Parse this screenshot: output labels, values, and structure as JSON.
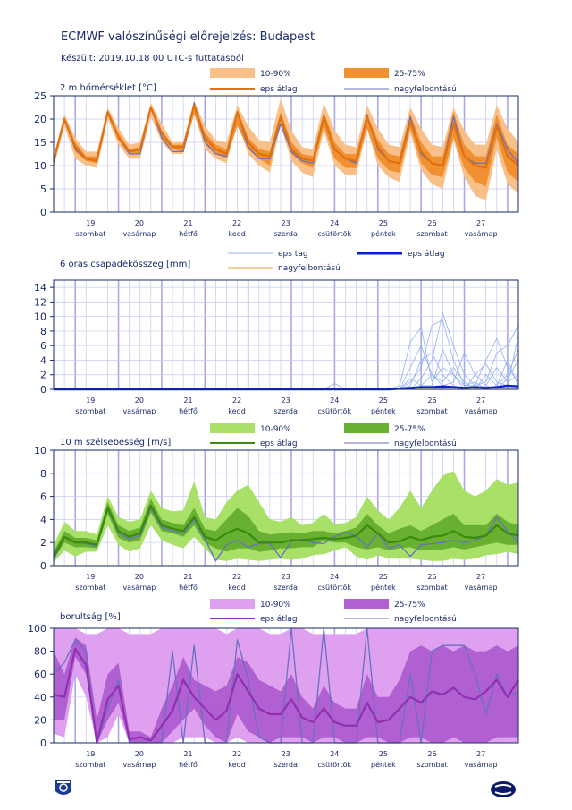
{
  "header": {
    "title": "ECMWF valószínűségi előrejelzés: Budapest",
    "subtitle": "Készült: 2019.10.18 00 UTC-s futtatásból"
  },
  "days": [
    {
      "num": "19",
      "name": "szombat"
    },
    {
      "num": "20",
      "name": "vasárnap"
    },
    {
      "num": "21",
      "name": "hétfő"
    },
    {
      "num": "22",
      "name": "kedd"
    },
    {
      "num": "23",
      "name": "szerda"
    },
    {
      "num": "24",
      "name": "csütörtök"
    },
    {
      "num": "25",
      "name": "péntek"
    },
    {
      "num": "26",
      "name": "szombat"
    },
    {
      "num": "27",
      "name": "vasárnap"
    }
  ],
  "legend": {
    "p10_90": "10-90%",
    "p25_75": "25-75%",
    "eps_mean": "eps átlag",
    "hires": "nagyfelbontású",
    "eps_member": "eps tag"
  },
  "colors": {
    "axis": "#1a2a6a",
    "grid": "#c8c8f0",
    "midnight": "#a8a8e8",
    "temp_outer": "#f8c088",
    "temp_inner": "#f09030",
    "temp_mean": "#e07010",
    "precip_member": "#90b0f0",
    "precip_mean": "#0a20d0",
    "precip_hires": "#f0a040",
    "wind_outer": "#a8e068",
    "wind_inner": "#68b030",
    "wind_mean": "#3a8a10",
    "cloud_outer": "#e0a0f0",
    "cloud_inner": "#b060d0",
    "cloud_mean": "#9030b0",
    "hires": "#6870c0"
  },
  "chart_data": [
    {
      "type": "area",
      "title": "2 m hőmérséklet [°C]",
      "ylim": [
        0,
        25
      ],
      "yticks": [
        0,
        5,
        10,
        15,
        20,
        25
      ],
      "x_step_hours": 6,
      "p10": [
        9.5,
        18.5,
        11.5,
        10,
        9.5,
        20,
        14.5,
        11.5,
        11.5,
        20.5,
        15,
        12.5,
        12.5,
        21.5,
        13.5,
        11.5,
        10.5,
        19.5,
        12.5,
        10,
        8.5,
        18.5,
        11,
        8.5,
        7.5,
        17.5,
        10,
        8,
        8,
        18,
        10,
        7.5,
        6.5,
        17,
        9,
        6,
        5,
        15.5,
        7.5,
        3.5,
        2.5,
        13.5,
        6,
        4
      ],
      "p25": [
        10.5,
        19.5,
        13,
        11,
        10.5,
        21,
        15.5,
        12.5,
        12.5,
        22.5,
        16,
        13.5,
        13,
        21,
        15,
        12.5,
        11.5,
        18.5,
        13.5,
        11.5,
        10,
        19.5,
        12.5,
        10.5,
        9.5,
        18.5,
        11.5,
        9.5,
        9.5,
        18,
        11.5,
        9,
        8.5,
        18,
        10.5,
        8,
        7.5,
        16,
        9.5,
        6.5,
        5.5,
        16,
        8.5,
        6.5
      ],
      "mean": [
        11,
        20,
        14,
        11.5,
        11,
        21.5,
        16,
        13,
        13.5,
        22.5,
        17,
        14,
        14,
        23,
        16,
        13.5,
        12.5,
        21.5,
        15,
        12.5,
        12,
        20.5,
        13.5,
        11.5,
        11,
        20.5,
        13.5,
        11.5,
        11,
        20.5,
        14,
        11,
        10.5,
        19.5,
        13,
        10.5,
        10,
        19,
        12,
        10,
        9.5,
        18.5,
        12,
        10
      ],
      "p75": [
        11.5,
        20.5,
        15,
        12,
        12,
        22,
        17,
        13.5,
        14,
        23,
        17.5,
        14.5,
        14.5,
        23.5,
        17,
        14.5,
        13.5,
        22,
        16,
        13.5,
        13,
        21.5,
        15,
        12.5,
        12,
        21.5,
        15,
        12.5,
        12.5,
        21,
        15.5,
        12.5,
        12,
        21,
        15,
        12,
        12,
        21.5,
        14.5,
        12,
        12,
        21,
        14.5,
        12.5
      ],
      "p90": [
        12,
        21,
        16,
        13,
        13,
        22.5,
        18,
        14.5,
        15,
        23.5,
        19,
        15,
        15,
        24,
        18.5,
        15.5,
        15,
        23,
        18.5,
        15.5,
        15,
        24.5,
        17.5,
        14,
        13.5,
        23.5,
        17.5,
        14.5,
        14,
        23,
        18,
        14.5,
        14,
        22.5,
        18,
        14.5,
        14,
        22.5,
        17.5,
        14.5,
        14.5,
        23,
        18,
        15
      ],
      "hires": [
        10.5,
        20,
        13.5,
        11.5,
        11,
        21.5,
        16,
        12.5,
        12.5,
        22.5,
        16,
        13,
        13,
        23.5,
        15,
        12.5,
        12,
        21.5,
        14,
        11.5,
        11.5,
        19,
        13,
        11,
        10.5,
        20.5,
        13.5,
        11.5,
        10.5,
        21,
        13.5,
        11,
        10.5,
        20.5,
        12.5,
        10.5,
        10,
        20.5,
        12,
        10.5,
        10.5,
        19,
        13.5,
        10.5
      ]
    },
    {
      "type": "line",
      "title": "6 órás csapadékösszeg [mm]",
      "ylim": [
        0,
        15
      ],
      "yticks": [
        0,
        2,
        4,
        6,
        8,
        10,
        12,
        14
      ],
      "x_step_hours": 6,
      "mean": [
        0,
        0,
        0,
        0,
        0,
        0,
        0,
        0,
        0,
        0,
        0,
        0,
        0,
        0,
        0,
        0,
        0,
        0,
        0,
        0,
        0,
        0,
        0,
        0,
        0,
        0,
        0,
        0,
        0,
        0,
        0,
        0,
        0.1,
        0.2,
        0.3,
        0.3,
        0.4,
        0.3,
        0.2,
        0.3,
        0.2,
        0.3,
        0.5,
        0.4
      ],
      "hires": [
        0,
        0,
        0,
        0,
        0,
        0,
        0,
        0,
        0,
        0,
        0,
        0,
        0,
        0,
        0,
        0,
        0,
        0,
        0,
        0,
        0,
        0,
        0,
        0,
        0,
        0,
        0,
        0,
        0,
        0,
        0,
        0,
        0,
        0,
        0,
        0,
        0,
        0,
        0,
        0,
        0,
        0,
        0,
        0
      ],
      "members": [
        [
          0,
          0,
          0,
          0,
          0,
          0,
          0,
          0,
          0,
          0,
          0,
          0,
          0,
          0,
          0,
          0,
          0,
          0,
          0,
          0,
          0,
          0,
          0,
          0,
          0,
          0,
          0,
          0,
          0,
          0,
          0,
          0,
          0.5,
          6.5,
          8.5,
          1,
          3,
          2,
          0.5,
          0.5,
          1,
          5,
          6,
          8.8
        ],
        [
          0,
          0,
          0,
          0,
          0,
          0,
          0,
          0,
          0,
          0,
          0,
          0,
          0,
          0,
          0,
          0,
          0,
          0,
          0,
          0,
          0,
          0,
          0,
          0,
          0,
          0,
          0,
          0,
          0,
          0,
          0,
          0,
          0,
          1,
          3,
          8.8,
          9.5,
          4,
          0.5,
          1,
          0,
          0.5,
          2,
          5.5
        ],
        [
          0,
          0,
          0,
          0,
          0,
          0,
          0,
          0,
          0,
          0,
          0,
          0,
          0,
          0,
          0,
          0,
          0,
          0,
          0,
          0,
          0,
          0,
          0,
          0,
          0,
          0,
          0,
          0,
          0,
          0,
          0,
          0,
          0,
          0,
          1.5,
          4,
          10.5,
          6,
          2,
          0.5,
          4,
          7,
          3,
          1
        ],
        [
          0,
          0,
          0,
          0,
          0,
          0,
          0,
          0,
          0,
          0,
          0,
          0,
          0,
          0,
          0,
          0,
          0,
          0,
          0,
          0,
          0,
          0,
          0,
          0,
          0,
          0,
          0,
          0,
          0,
          0,
          0,
          0,
          0,
          3,
          6,
          2,
          0.5,
          1,
          5,
          2,
          0.5,
          0,
          1.5,
          4
        ],
        [
          0,
          0,
          0,
          0,
          0,
          0,
          0,
          0,
          0,
          0,
          0,
          0,
          0,
          0,
          0,
          0,
          0,
          0,
          0,
          0,
          0,
          0,
          0,
          0,
          0,
          0,
          0,
          0,
          0,
          0,
          0,
          0,
          0,
          0.5,
          4,
          5,
          2,
          0.5,
          0,
          2,
          3.5,
          1,
          0.5,
          7.5
        ],
        [
          0,
          0,
          0,
          0,
          0,
          0,
          0,
          0,
          0,
          0,
          0,
          0,
          0,
          0,
          0,
          0,
          0,
          0,
          0,
          0,
          0,
          0,
          0,
          0,
          0,
          0,
          0.8,
          0,
          0,
          0,
          0,
          0,
          0,
          0,
          0.5,
          2,
          1,
          3,
          1,
          0,
          0.5,
          3,
          1,
          2
        ],
        [
          0,
          0,
          0,
          0,
          0,
          0,
          0,
          0,
          0,
          0,
          0,
          0,
          0,
          0,
          0,
          0,
          0,
          0,
          0,
          0,
          0,
          0,
          0,
          0,
          0,
          0,
          0,
          0,
          0,
          0,
          0,
          0,
          0,
          1.5,
          0.5,
          0.5,
          5.5,
          2,
          0,
          0,
          2,
          0.5,
          4,
          0.5
        ]
      ]
    },
    {
      "type": "area",
      "title": "10 m szélsebesség [m/s]",
      "ylim": [
        0,
        10
      ],
      "yticks": [
        0,
        2,
        4,
        6,
        8,
        10
      ],
      "x_step_hours": 6,
      "p10": [
        0.3,
        1.3,
        0.8,
        1.2,
        1.2,
        3.5,
        1.8,
        1.2,
        1.5,
        3.5,
        2.2,
        1.8,
        1.5,
        2.5,
        1.5,
        0.5,
        0.4,
        0.6,
        0.5,
        0.4,
        0.5,
        0.6,
        0.5,
        0.6,
        0.9,
        1.0,
        1.3,
        1.6,
        0.8,
        0.5,
        0.9,
        0.6,
        0.6,
        0.6,
        0.5,
        0.4,
        0.4,
        0.6,
        0.5,
        0.6,
        0.9,
        1.0,
        1.2,
        1.0
      ],
      "p25": [
        0.5,
        2.0,
        1.6,
        1.6,
        1.5,
        4.5,
        2.4,
        2.0,
        2.2,
        4.6,
        3.0,
        2.8,
        2.5,
        3.5,
        2.0,
        1.5,
        1.2,
        1.5,
        1.5,
        1.2,
        1.3,
        1.5,
        1.5,
        1.6,
        1.6,
        2.2,
        2.0,
        2.0,
        1.6,
        1.4,
        1.6,
        1.3,
        1.5,
        1.6,
        1.3,
        1.4,
        1.4,
        1.6,
        1.4,
        1.6,
        1.8,
        2.0,
        1.8,
        1.8
      ],
      "mean": [
        0.8,
        2.5,
        2.0,
        2.0,
        1.8,
        5.0,
        3.0,
        2.5,
        2.8,
        5.2,
        3.5,
        3.2,
        3.0,
        4.2,
        2.5,
        2.2,
        2.8,
        3.2,
        2.8,
        2.0,
        2.0,
        2.0,
        2.2,
        2.2,
        2.3,
        2.4,
        2.3,
        2.4,
        2.6,
        3.5,
        2.8,
        2.0,
        2.1,
        2.5,
        2.2,
        2.5,
        2.6,
        3.0,
        2.5,
        2.4,
        2.6,
        3.5,
        2.8,
        2.6
      ],
      "p75": [
        1.2,
        3.0,
        2.4,
        2.4,
        2.2,
        5.5,
        3.5,
        3.0,
        3.3,
        5.8,
        4.0,
        3.7,
        3.5,
        5.0,
        3.2,
        3.0,
        4.0,
        5.0,
        4.3,
        3.0,
        2.7,
        2.8,
        2.9,
        2.8,
        3.0,
        3.0,
        2.8,
        3.0,
        3.3,
        4.5,
        3.5,
        2.8,
        3.2,
        3.5,
        3.0,
        3.5,
        4.0,
        4.5,
        3.5,
        3.5,
        3.5,
        4.5,
        3.8,
        3.5
      ],
      "p90": [
        1.8,
        3.8,
        3.0,
        3.0,
        2.7,
        6.0,
        4.2,
        3.8,
        4.0,
        6.5,
        5.0,
        4.7,
        4.8,
        7.3,
        4.2,
        4.0,
        5.5,
        6.5,
        7.0,
        5.5,
        4.0,
        3.8,
        4.2,
        3.5,
        3.7,
        4.5,
        3.6,
        3.7,
        4.2,
        6.0,
        4.8,
        4.0,
        5.0,
        6.5,
        5.0,
        6.5,
        7.8,
        8.2,
        6.5,
        6.0,
        6.5,
        7.5,
        7.0,
        7.2
      ],
      "hires": [
        0.5,
        2.5,
        2.0,
        1.9,
        1.7,
        4.9,
        2.8,
        2.3,
        2.6,
        5.0,
        3.3,
        3.0,
        2.8,
        4.0,
        2.3,
        0.4,
        1.8,
        2.2,
        1.6,
        1.9,
        1.9,
        0.7,
        2.1,
        2.3,
        2.0,
        1.9,
        2.5,
        2.9,
        2.6,
        1.6,
        2.8,
        1.5,
        1.8,
        0.8,
        1.8,
        1.9,
        2.0,
        2.2,
        2.0,
        2.2,
        2.6,
        4.2,
        3.0,
        2.0
      ]
    },
    {
      "type": "area",
      "title": "borultság [%]",
      "ylim": [
        0,
        100
      ],
      "yticks": [
        0,
        20,
        40,
        60,
        80,
        100
      ],
      "x_step_hours": 6,
      "p10": [
        8,
        5,
        60,
        40,
        0,
        5,
        25,
        0,
        0,
        0,
        0,
        0,
        5,
        5,
        5,
        0,
        0,
        5,
        0,
        0,
        0,
        0,
        0,
        0,
        0,
        0,
        0,
        0,
        0,
        0,
        0,
        0,
        0,
        0,
        0,
        0,
        0,
        0,
        0,
        0,
        0,
        0,
        0,
        0
      ],
      "p25": [
        20,
        20,
        75,
        60,
        0,
        20,
        35,
        0,
        0,
        0,
        0,
        10,
        20,
        30,
        15,
        5,
        0,
        25,
        10,
        5,
        0,
        5,
        5,
        5,
        0,
        5,
        5,
        0,
        0,
        5,
        5,
        0,
        0,
        5,
        5,
        0,
        0,
        5,
        0,
        0,
        0,
        5,
        5,
        5
      ],
      "mean": [
        42,
        40,
        82,
        68,
        0,
        38,
        50,
        3,
        5,
        2,
        15,
        28,
        55,
        40,
        30,
        20,
        28,
        60,
        45,
        30,
        25,
        25,
        38,
        22,
        18,
        30,
        18,
        15,
        15,
        35,
        18,
        20,
        30,
        40,
        35,
        45,
        42,
        48,
        40,
        38,
        45,
        55,
        40,
        55
      ],
      "p75": [
        80,
        60,
        92,
        85,
        20,
        60,
        70,
        10,
        10,
        5,
        30,
        50,
        75,
        55,
        50,
        45,
        50,
        75,
        70,
        55,
        50,
        45,
        60,
        40,
        30,
        50,
        35,
        30,
        30,
        60,
        40,
        40,
        55,
        80,
        85,
        80,
        85,
        80,
        85,
        80,
        80,
        85,
        80,
        85
      ],
      "p90": [
        100,
        100,
        100,
        95,
        95,
        100,
        100,
        95,
        95,
        95,
        100,
        100,
        100,
        100,
        100,
        100,
        95,
        100,
        100,
        100,
        95,
        95,
        100,
        100,
        95,
        95,
        95,
        95,
        95,
        100,
        100,
        100,
        100,
        100,
        100,
        100,
        100,
        100,
        100,
        100,
        100,
        100,
        100,
        100
      ],
      "hires": [
        60,
        70,
        90,
        80,
        0,
        30,
        55,
        0,
        0,
        0,
        0,
        80,
        0,
        85,
        0,
        0,
        0,
        90,
        55,
        5,
        0,
        0,
        100,
        0,
        0,
        100,
        0,
        0,
        0,
        100,
        0,
        0,
        0,
        60,
        0,
        80,
        85,
        85,
        85,
        60,
        25,
        60,
        40,
        45
      ]
    }
  ]
}
